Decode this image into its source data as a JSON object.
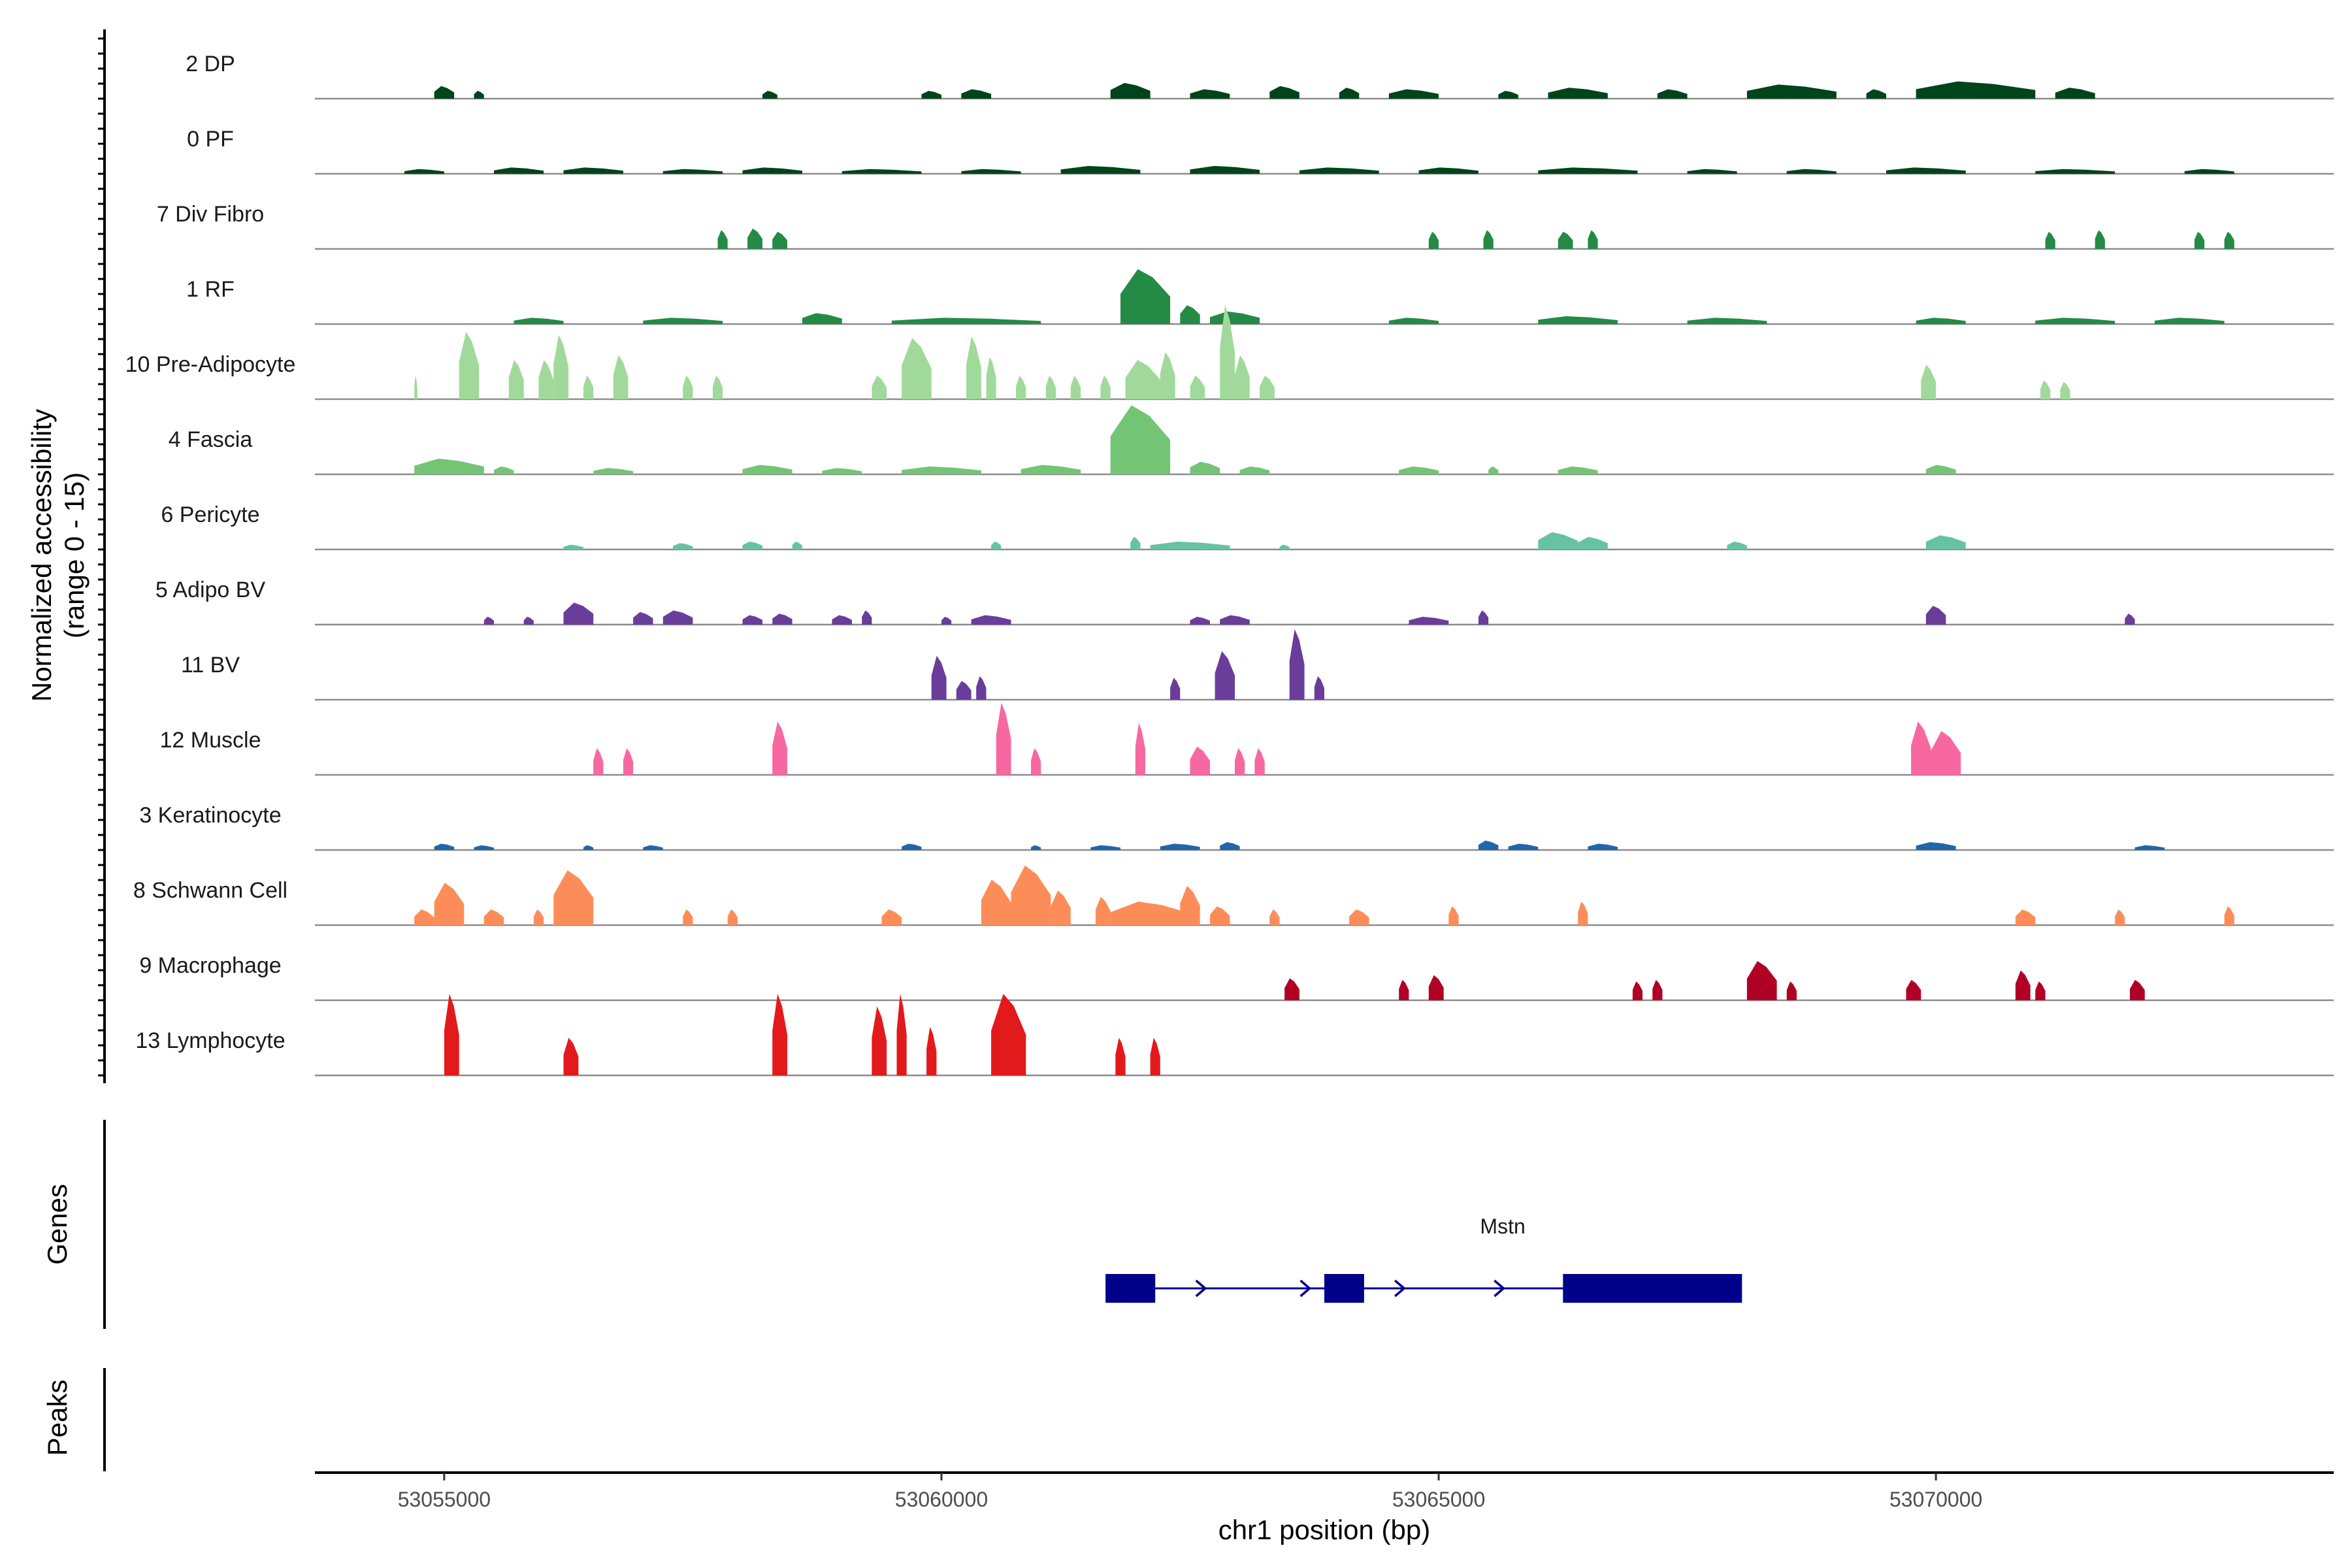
{
  "chart_data": {
    "type": "coverage",
    "chromosome": "chr1",
    "xlabel": "chr1 position (bp)",
    "ylabel_line1": "Normalized accessibility",
    "ylabel_line2": "(range 0 - 15)",
    "ylim": [
      0,
      15
    ],
    "xlim": [
      53053700,
      53074000
    ],
    "x_ticks": [
      53055000,
      53060000,
      53065000,
      53070000
    ],
    "x_tick_labels": [
      "53055000",
      "53060000",
      "53065000",
      "53070000"
    ],
    "genes_panel_label": "Genes",
    "peaks_panel_label": "Peaks",
    "tracks": [
      {
        "name": "2 DP",
        "color": "#00441b",
        "peaks": [
          [
            53054900,
            53055100,
            0.8
          ],
          [
            53055300,
            53055400,
            0.5
          ],
          [
            53058200,
            53058350,
            0.5
          ],
          [
            53059800,
            53060000,
            0.5
          ],
          [
            53060200,
            53060500,
            0.6
          ],
          [
            53061700,
            53062100,
            1.0
          ],
          [
            53062500,
            53062900,
            0.6
          ],
          [
            53063300,
            53063600,
            0.8
          ],
          [
            53064000,
            53064200,
            0.7
          ],
          [
            53064500,
            53065000,
            0.6
          ],
          [
            53065600,
            53065800,
            0.5
          ],
          [
            53066100,
            53066700,
            0.7
          ],
          [
            53067200,
            53067500,
            0.6
          ],
          [
            53068100,
            53069000,
            0.9
          ],
          [
            53069300,
            53069500,
            0.6
          ],
          [
            53069800,
            53071000,
            1.1
          ],
          [
            53071200,
            53071600,
            0.7
          ]
        ]
      },
      {
        "name": "0 PF",
        "color": "#00441b",
        "peaks": [
          [
            53054600,
            53055000,
            0.3
          ],
          [
            53055500,
            53056000,
            0.4
          ],
          [
            53056200,
            53056800,
            0.4
          ],
          [
            53057200,
            53057800,
            0.3
          ],
          [
            53058000,
            53058600,
            0.4
          ],
          [
            53059000,
            53059800,
            0.3
          ],
          [
            53060200,
            53060800,
            0.3
          ],
          [
            53061200,
            53062000,
            0.5
          ],
          [
            53062500,
            53063200,
            0.5
          ],
          [
            53063600,
            53064400,
            0.4
          ],
          [
            53064800,
            53065400,
            0.4
          ],
          [
            53066000,
            53067000,
            0.4
          ],
          [
            53067500,
            53068000,
            0.3
          ],
          [
            53068500,
            53069000,
            0.3
          ],
          [
            53069500,
            53070300,
            0.4
          ],
          [
            53071000,
            53071800,
            0.3
          ],
          [
            53072500,
            53073000,
            0.3
          ]
        ]
      },
      {
        "name": "7 Div Fibro",
        "color": "#238b45",
        "peaks": [
          [
            53057750,
            53057850,
            1.2
          ],
          [
            53058050,
            53058200,
            1.3
          ],
          [
            53058300,
            53058450,
            1.1
          ],
          [
            53064900,
            53065000,
            1.1
          ],
          [
            53065450,
            53065550,
            1.2
          ],
          [
            53066200,
            53066350,
            1.1
          ],
          [
            53066500,
            53066600,
            1.2
          ],
          [
            53071100,
            53071200,
            1.1
          ],
          [
            53071600,
            53071700,
            1.2
          ],
          [
            53072600,
            53072700,
            1.1
          ],
          [
            53072900,
            53073000,
            1.1
          ]
        ]
      },
      {
        "name": "1 RF",
        "color": "#238b45",
        "peaks": [
          [
            53055700,
            53056200,
            0.4
          ],
          [
            53057000,
            53057800,
            0.4
          ],
          [
            53058600,
            53059000,
            0.7
          ],
          [
            53059500,
            53061000,
            0.4
          ],
          [
            53061800,
            53062300,
            3.5
          ],
          [
            53062400,
            53062600,
            1.2
          ],
          [
            53062700,
            53063200,
            0.8
          ],
          [
            53064500,
            53065000,
            0.4
          ],
          [
            53066000,
            53066800,
            0.5
          ],
          [
            53067500,
            53068300,
            0.4
          ],
          [
            53069800,
            53070300,
            0.4
          ],
          [
            53071000,
            53071800,
            0.4
          ],
          [
            53072200,
            53072900,
            0.4
          ]
        ]
      },
      {
        "name": "10 Pre-Adipocyte",
        "color": "#a1d99b",
        "peaks": [
          [
            53054700,
            53054730,
            1.5
          ],
          [
            53055150,
            53055350,
            4.3
          ],
          [
            53055650,
            53055800,
            2.5
          ],
          [
            53055950,
            53056100,
            2.5
          ],
          [
            53056100,
            53056250,
            4.1
          ],
          [
            53056400,
            53056500,
            1.5
          ],
          [
            53056700,
            53056850,
            2.8
          ],
          [
            53057400,
            53057500,
            1.5
          ],
          [
            53057700,
            53057800,
            1.5
          ],
          [
            53059300,
            53059450,
            1.5
          ],
          [
            53059600,
            53059900,
            3.9
          ],
          [
            53060250,
            53060400,
            4.0
          ],
          [
            53060450,
            53060550,
            2.7
          ],
          [
            53060750,
            53060850,
            1.5
          ],
          [
            53061050,
            53061150,
            1.5
          ],
          [
            53061300,
            53061400,
            1.5
          ],
          [
            53061600,
            53061700,
            1.5
          ],
          [
            53061850,
            53062200,
            2.5
          ],
          [
            53062200,
            53062350,
            3.0
          ],
          [
            53062500,
            53062650,
            1.5
          ],
          [
            53062800,
            53062950,
            6.0
          ],
          [
            53062950,
            53063100,
            2.8
          ],
          [
            53063200,
            53063350,
            1.5
          ],
          [
            53069850,
            53070000,
            2.2
          ],
          [
            53071050,
            53071150,
            1.2
          ],
          [
            53071250,
            53071350,
            1.1
          ]
        ]
      },
      {
        "name": "4 Fascia",
        "color": "#74c476",
        "peaks": [
          [
            53054700,
            53055400,
            1.0
          ],
          [
            53055500,
            53055700,
            0.5
          ],
          [
            53056500,
            53056900,
            0.4
          ],
          [
            53058000,
            53058500,
            0.6
          ],
          [
            53058800,
            53059200,
            0.4
          ],
          [
            53059600,
            53060400,
            0.5
          ],
          [
            53060800,
            53061400,
            0.6
          ],
          [
            53061700,
            53062300,
            4.4
          ],
          [
            53062500,
            53062800,
            0.8
          ],
          [
            53063000,
            53063300,
            0.5
          ],
          [
            53064600,
            53065000,
            0.5
          ],
          [
            53065500,
            53065600,
            0.5
          ],
          [
            53066200,
            53066600,
            0.5
          ],
          [
            53069900,
            53070200,
            0.6
          ]
        ]
      },
      {
        "name": "6 Pericyte",
        "color": "#66c2a4",
        "peaks": [
          [
            53056200,
            53056400,
            0.3
          ],
          [
            53057300,
            53057500,
            0.4
          ],
          [
            53058000,
            53058200,
            0.5
          ],
          [
            53058500,
            53058600,
            0.5
          ],
          [
            53060500,
            53060600,
            0.5
          ],
          [
            53061900,
            53062000,
            0.8
          ],
          [
            53062100,
            53062900,
            0.5
          ],
          [
            53063400,
            53063500,
            0.3
          ],
          [
            53066000,
            53066400,
            1.1
          ],
          [
            53066400,
            53066700,
            0.8
          ],
          [
            53067900,
            53068100,
            0.5
          ],
          [
            53069900,
            53070300,
            0.9
          ]
        ]
      },
      {
        "name": "5 Adipo BV",
        "color": "#6a3d9a",
        "peaks": [
          [
            53055400,
            53055500,
            0.5
          ],
          [
            53055800,
            53055900,
            0.5
          ],
          [
            53056200,
            53056500,
            1.4
          ],
          [
            53056900,
            53057100,
            0.8
          ],
          [
            53057200,
            53057500,
            0.9
          ],
          [
            53058000,
            53058200,
            0.6
          ],
          [
            53058300,
            53058500,
            0.7
          ],
          [
            53058900,
            53059100,
            0.6
          ],
          [
            53059200,
            53059300,
            0.9
          ],
          [
            53060000,
            53060100,
            0.5
          ],
          [
            53060300,
            53060700,
            0.6
          ],
          [
            53062500,
            53062700,
            0.5
          ],
          [
            53062800,
            53063100,
            0.6
          ],
          [
            53064700,
            53065100,
            0.5
          ],
          [
            53065400,
            53065500,
            0.9
          ],
          [
            53069900,
            53070100,
            1.2
          ],
          [
            53071900,
            53072000,
            0.7
          ]
        ]
      },
      {
        "name": "11 BV",
        "color": "#6a3d9a",
        "peaks": [
          [
            53059900,
            53060050,
            2.8
          ],
          [
            53060150,
            53060300,
            1.2
          ],
          [
            53060350,
            53060450,
            1.5
          ],
          [
            53062300,
            53062400,
            1.4
          ],
          [
            53062750,
            53062950,
            3.1
          ],
          [
            53063500,
            53063650,
            4.5
          ],
          [
            53063750,
            53063850,
            1.5
          ]
        ]
      },
      {
        "name": "12 Muscle",
        "color": "#f768a1",
        "peaks": [
          [
            53056500,
            53056600,
            1.7
          ],
          [
            53056800,
            53056900,
            1.7
          ],
          [
            53058300,
            53058450,
            3.4
          ],
          [
            53060550,
            53060700,
            4.6
          ],
          [
            53060900,
            53061000,
            1.7
          ],
          [
            53061950,
            53062050,
            3.3
          ],
          [
            53062500,
            53062700,
            1.8
          ],
          [
            53062950,
            53063050,
            1.7
          ],
          [
            53063150,
            53063250,
            1.7
          ],
          [
            53069750,
            53069950,
            3.4
          ],
          [
            53069950,
            53070250,
            2.8
          ]
        ]
      },
      {
        "name": "3 Keratinocyte",
        "color": "#2166ac",
        "peaks": [
          [
            53054900,
            53055100,
            0.4
          ],
          [
            53055300,
            53055500,
            0.3
          ],
          [
            53056400,
            53056500,
            0.3
          ],
          [
            53057000,
            53057200,
            0.3
          ],
          [
            53059600,
            53059800,
            0.4
          ],
          [
            53060900,
            53061000,
            0.3
          ],
          [
            53061500,
            53061800,
            0.3
          ],
          [
            53062200,
            53062600,
            0.4
          ],
          [
            53062800,
            53063000,
            0.5
          ],
          [
            53065400,
            53065600,
            0.6
          ],
          [
            53065700,
            53066000,
            0.4
          ],
          [
            53066500,
            53066800,
            0.4
          ],
          [
            53069800,
            53070200,
            0.5
          ],
          [
            53072000,
            53072300,
            0.3
          ]
        ]
      },
      {
        "name": "8 Schwann Cell",
        "color": "#fc8d59",
        "peaks": [
          [
            53054700,
            53054900,
            1.0
          ],
          [
            53054900,
            53055200,
            2.7
          ],
          [
            53055400,
            53055600,
            1.0
          ],
          [
            53055900,
            53056000,
            1.0
          ],
          [
            53056100,
            53056500,
            3.5
          ],
          [
            53057400,
            53057500,
            1.0
          ],
          [
            53057850,
            53057950,
            1.0
          ],
          [
            53059400,
            53059600,
            1.0
          ],
          [
            53060400,
            53060700,
            2.9
          ],
          [
            53060700,
            53061100,
            3.8
          ],
          [
            53061100,
            53061300,
            2.2
          ],
          [
            53061550,
            53061700,
            1.8
          ],
          [
            53061700,
            53062500,
            1.5
          ],
          [
            53062400,
            53062600,
            2.5
          ],
          [
            53062700,
            53062900,
            1.2
          ],
          [
            53063300,
            53063400,
            1.0
          ],
          [
            53064100,
            53064300,
            1.0
          ],
          [
            53065100,
            53065200,
            1.2
          ],
          [
            53066400,
            53066500,
            1.5
          ],
          [
            53070800,
            53071000,
            1.0
          ],
          [
            53071800,
            53071900,
            1.0
          ],
          [
            53072900,
            53073000,
            1.2
          ]
        ]
      },
      {
        "name": "9 Macrophage",
        "color": "#b10026",
        "peaks": [
          [
            53063450,
            53063600,
            1.4
          ],
          [
            53064600,
            53064700,
            1.3
          ],
          [
            53064900,
            53065050,
            1.6
          ],
          [
            53066950,
            53067050,
            1.2
          ],
          [
            53067150,
            53067250,
            1.3
          ],
          [
            53068100,
            53068400,
            2.5
          ],
          [
            53068500,
            53068600,
            1.2
          ],
          [
            53069700,
            53069850,
            1.3
          ],
          [
            53070800,
            53070950,
            1.9
          ],
          [
            53071000,
            53071100,
            1.2
          ],
          [
            53071950,
            53072100,
            1.3
          ]
        ]
      },
      {
        "name": "13 Lymphocyte",
        "color": "#e31a1c",
        "peaks": [
          [
            53055000,
            53055150,
            5.2
          ],
          [
            53056200,
            53056350,
            2.4
          ],
          [
            53058300,
            53058450,
            5.2
          ],
          [
            53059300,
            53059450,
            4.4
          ],
          [
            53059550,
            53059650,
            5.2
          ],
          [
            53059850,
            53059950,
            3.1
          ],
          [
            53060500,
            53060850,
            5.2
          ],
          [
            53061750,
            53061850,
            2.4
          ],
          [
            53062100,
            53062200,
            2.4
          ]
        ]
      }
    ],
    "gene": {
      "name": "Mstn",
      "start": 53061650,
      "end": 53068050,
      "strand": "+",
      "exons": [
        [
          53061650,
          53062150
        ],
        [
          53063850,
          53064250
        ],
        [
          53066250,
          53068050
        ]
      ],
      "arrows": [
        53061700,
        53062600,
        53063650,
        53064600,
        53065600
      ],
      "color": "#00008b"
    }
  }
}
